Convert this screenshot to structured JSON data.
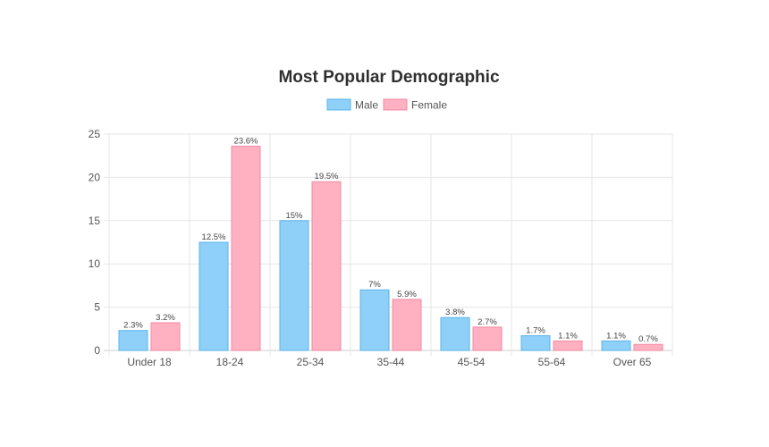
{
  "chart_data": {
    "type": "bar",
    "title": "Most Popular Demographic",
    "categories": [
      "Under 18",
      "18-24",
      "25-34",
      "35-44",
      "45-54",
      "55-64",
      "Over 65"
    ],
    "series": [
      {
        "name": "Male",
        "values": [
          2.3,
          12.5,
          15,
          7,
          3.8,
          1.7,
          1.1
        ],
        "labels": [
          "2.3%",
          "12.5%",
          "15%",
          "7%",
          "3.8%",
          "1.7%",
          "1.1%"
        ],
        "fill": "#8fd0f8",
        "stroke": "#5ab3ec"
      },
      {
        "name": "Female",
        "values": [
          3.2,
          23.6,
          19.5,
          5.9,
          2.7,
          1.1,
          0.7
        ],
        "labels": [
          "3.2%",
          "23.6%",
          "19.5%",
          "5.9%",
          "2.7%",
          "1.1%",
          "0.7%"
        ],
        "fill": "#ffb0c1",
        "stroke": "#f28aa2"
      }
    ],
    "ylim": [
      0,
      25
    ],
    "yticks": [
      "0",
      "5",
      "10",
      "15",
      "20",
      "25"
    ],
    "grid": true,
    "legend_position": "top-center"
  }
}
